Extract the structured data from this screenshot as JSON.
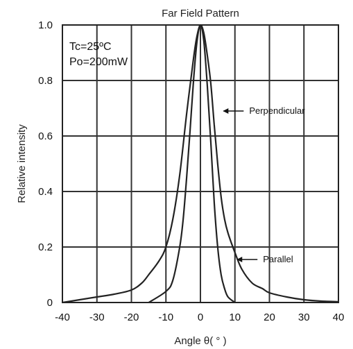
{
  "chart_data": {
    "type": "line",
    "title": "Far Field Pattern",
    "xlabel": "Angle θ( ° )",
    "ylabel": "Relative intensity",
    "xlim": [
      -40,
      40
    ],
    "ylim": [
      0,
      1.0
    ],
    "x_ticks": [
      -40,
      -30,
      -20,
      -10,
      0,
      10,
      20,
      30,
      40
    ],
    "x_tick_labels": [
      "-40",
      "-30",
      "-20",
      "-10",
      "0",
      "10",
      "20",
      "30",
      "40"
    ],
    "y_ticks": [
      0,
      0.2,
      0.4,
      0.6,
      0.8,
      1.0
    ],
    "y_tick_labels": [
      "0",
      "0.2",
      "0.4",
      "0.6",
      "0.8",
      "1.0"
    ],
    "grid": true,
    "annotation_lines": [
      "Tc=25ºC",
      "Po=200mW"
    ],
    "series": [
      {
        "name": "Perpendicular",
        "color": "#222222",
        "label_at": [
          6.5,
          0.69
        ],
        "points": [
          [
            -40,
            0.0
          ],
          [
            -35,
            0.01
          ],
          [
            -30,
            0.02
          ],
          [
            -25,
            0.03
          ],
          [
            -20,
            0.045
          ],
          [
            -17,
            0.07
          ],
          [
            -15,
            0.1
          ],
          [
            -12,
            0.15
          ],
          [
            -10,
            0.2
          ],
          [
            -8,
            0.3
          ],
          [
            -6,
            0.46
          ],
          [
            -4,
            0.68
          ],
          [
            -2,
            0.88
          ],
          [
            -1,
            0.96
          ],
          [
            0,
            1.0
          ],
          [
            1,
            0.97
          ],
          [
            2,
            0.89
          ],
          [
            3,
            0.79
          ],
          [
            4,
            0.64
          ],
          [
            5,
            0.5
          ],
          [
            6,
            0.38
          ],
          [
            7,
            0.3
          ],
          [
            8,
            0.25
          ],
          [
            10,
            0.18
          ],
          [
            12,
            0.12
          ],
          [
            15,
            0.07
          ],
          [
            18,
            0.05
          ],
          [
            20,
            0.035
          ],
          [
            25,
            0.02
          ],
          [
            30,
            0.01
          ],
          [
            35,
            0.005
          ],
          [
            40,
            0.003
          ]
        ]
      },
      {
        "name": "Parallel",
        "color": "#222222",
        "label_at": [
          10.5,
          0.155
        ],
        "points": [
          [
            -15,
            0.0
          ],
          [
            -10,
            0.04
          ],
          [
            -8,
            0.08
          ],
          [
            -6,
            0.2
          ],
          [
            -5,
            0.3
          ],
          [
            -4,
            0.45
          ],
          [
            -3,
            0.62
          ],
          [
            -2,
            0.8
          ],
          [
            -1,
            0.94
          ],
          [
            0,
            1.0
          ],
          [
            1,
            0.94
          ],
          [
            2,
            0.78
          ],
          [
            3,
            0.58
          ],
          [
            4,
            0.36
          ],
          [
            5,
            0.2
          ],
          [
            6,
            0.1
          ],
          [
            7,
            0.05
          ],
          [
            8,
            0.02
          ],
          [
            10,
            0.0
          ]
        ]
      }
    ]
  }
}
